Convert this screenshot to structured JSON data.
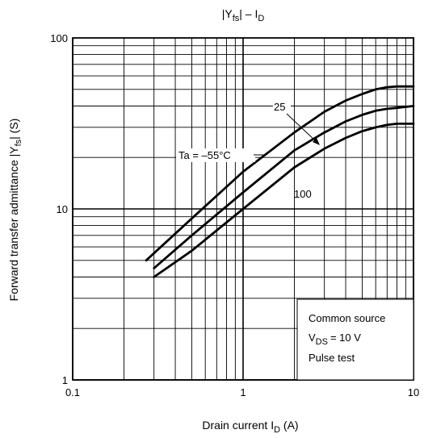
{
  "chart_data": {
    "type": "line",
    "x_scale": "log",
    "y_scale": "log",
    "xlim": [
      0.1,
      10
    ],
    "ylim": [
      1,
      100
    ],
    "grid": true,
    "x_tick_labels": [
      "0.1",
      "1",
      "10"
    ],
    "y_tick_labels": [
      "1",
      "10",
      "100"
    ],
    "title": {
      "main": "|Y",
      "sub": "fs",
      "mid": "| – I",
      "sub2": "D"
    },
    "xlabel": {
      "main": "Drain current   I",
      "sub": "D",
      "tail": "   (A)"
    },
    "ylabel": {
      "main": "Forward transfer admittance   |Y",
      "sub": "fs",
      "tail": "|     (S)"
    },
    "series": [
      {
        "name": "Ta = –55°C",
        "x": [
          0.27,
          0.5,
          1,
          2,
          3,
          4,
          5,
          6,
          7,
          8,
          9,
          10
        ],
        "y": [
          5.0,
          8.8,
          16.5,
          28,
          37,
          43,
          47,
          50,
          51.5,
          52,
          52,
          52
        ]
      },
      {
        "name": "25",
        "x": [
          0.3,
          0.5,
          1,
          2,
          3,
          4,
          5,
          6,
          7,
          8,
          9,
          10
        ],
        "y": [
          4.5,
          7.0,
          12.5,
          22,
          28,
          32.5,
          35.5,
          37.5,
          38.5,
          39,
          39.5,
          40
        ]
      },
      {
        "name": "100",
        "x": [
          0.3,
          0.5,
          1,
          2,
          3,
          4,
          5,
          6,
          7,
          8,
          9,
          10
        ],
        "y": [
          4.0,
          5.7,
          10,
          17.5,
          22.5,
          26,
          28.5,
          30,
          31,
          31.5,
          31.5,
          31.5
        ]
      }
    ],
    "annotations": {
      "conditions": [
        "Common source",
        "= 10 V",
        "Pulse test"
      ],
      "vds_symbol": "V",
      "vds_sub": "DS"
    }
  }
}
